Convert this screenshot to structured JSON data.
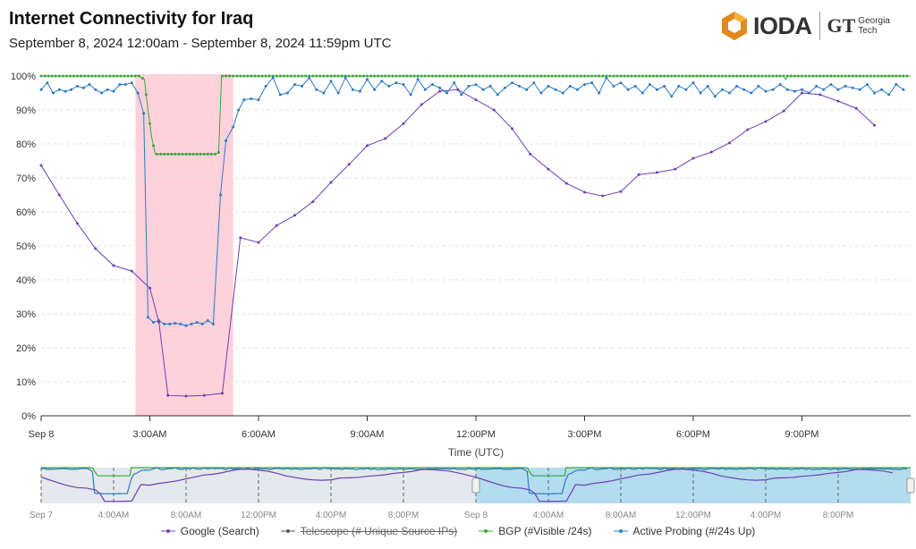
{
  "header": {
    "title": "Internet Connectivity for  Iraq",
    "subtitle": "September 8, 2024 12:00am - September 8, 2024 11:59pm UTC",
    "logo_text": "IODA",
    "partner_logo": "GT",
    "partner_name_1": "Georgia",
    "partner_name_2": "Tech"
  },
  "colors": {
    "google": "#6f3fb5",
    "telescope": "#555555",
    "bgp": "#3aa63a",
    "active": "#2b7bc4",
    "outage": "#ffd1da"
  },
  "chart_data": {
    "type": "line",
    "xlabel": "Time (UTC)",
    "ylabel": "",
    "ylim": [
      0,
      100
    ],
    "xlim_hours": [
      0,
      24
    ],
    "y_ticks": [
      "0%",
      "10%",
      "20%",
      "30%",
      "40%",
      "50%",
      "60%",
      "70%",
      "80%",
      "90%",
      "100%"
    ],
    "x_ticks": [
      {
        "h": 0,
        "label": "Sep 8"
      },
      {
        "h": 3,
        "label": "3:00AM"
      },
      {
        "h": 6,
        "label": "6:00AM"
      },
      {
        "h": 9,
        "label": "9:00AM"
      },
      {
        "h": 12,
        "label": "12:00PM"
      },
      {
        "h": 15,
        "label": "3:00PM"
      },
      {
        "h": 18,
        "label": "6:00PM"
      },
      {
        "h": 21,
        "label": "9:00PM"
      }
    ],
    "outage_hours": [
      2.6,
      5.3
    ],
    "series": [
      {
        "name": "Google (Search)",
        "key": "google",
        "struck": false,
        "points": [
          [
            0,
            73.7
          ],
          [
            0.5,
            65
          ],
          [
            1,
            56.6
          ],
          [
            1.5,
            49.2
          ],
          [
            2,
            44.2
          ],
          [
            2.5,
            42.6
          ],
          [
            3,
            37.6
          ],
          [
            3.25,
            27.6
          ],
          [
            3.5,
            6
          ],
          [
            4,
            5.8
          ],
          [
            4.5,
            6
          ],
          [
            5,
            6.6
          ],
          [
            5.5,
            52.4
          ],
          [
            6,
            51
          ],
          [
            6.5,
            56
          ],
          [
            7,
            59
          ],
          [
            7.5,
            63
          ],
          [
            8,
            68.7
          ],
          [
            8.5,
            74
          ],
          [
            9,
            79.5
          ],
          [
            9.5,
            81.6
          ],
          [
            10,
            86
          ],
          [
            10.5,
            91.6
          ],
          [
            11,
            95.5
          ],
          [
            11.5,
            96
          ],
          [
            12,
            93
          ],
          [
            12.5,
            90
          ],
          [
            13,
            84.5
          ],
          [
            13.5,
            77
          ],
          [
            14,
            72.6
          ],
          [
            14.5,
            68.4
          ],
          [
            15,
            65.8
          ],
          [
            15.5,
            64.7
          ],
          [
            16,
            66
          ],
          [
            16.5,
            71
          ],
          [
            17,
            71.6
          ],
          [
            17.5,
            72.6
          ],
          [
            18,
            75.8
          ],
          [
            18.5,
            77.6
          ],
          [
            19,
            80.3
          ],
          [
            19.5,
            84.2
          ],
          [
            20,
            86.6
          ],
          [
            20.5,
            89.7
          ],
          [
            21,
            95
          ],
          [
            21.5,
            94.5
          ],
          [
            22,
            92.6
          ],
          [
            22.5,
            90.5
          ],
          [
            23,
            85.5
          ]
        ]
      },
      {
        "name": "Telescope (# Unique Source IPs)",
        "key": "telescope",
        "struck": true,
        "points": []
      },
      {
        "name": "BGP (#Visible /24s)",
        "key": "bgp",
        "struck": false,
        "points": [
          [
            0,
            100
          ],
          [
            2.7,
            100
          ],
          [
            2.85,
            99
          ],
          [
            2.95,
            90
          ],
          [
            3.05,
            82
          ],
          [
            3.15,
            77
          ],
          [
            4.8,
            77
          ],
          [
            4.9,
            77.5
          ],
          [
            4.98,
            100
          ],
          [
            20.5,
            100
          ],
          [
            20.55,
            99
          ],
          [
            20.6,
            100
          ],
          [
            24,
            100
          ]
        ]
      },
      {
        "name": "Active Probing (#/24s Up)",
        "key": "active",
        "struck": false,
        "points": [
          [
            0,
            96
          ],
          [
            0.17,
            98
          ],
          [
            0.33,
            95
          ],
          [
            0.5,
            96
          ],
          [
            0.67,
            95.5
          ],
          [
            0.83,
            96
          ],
          [
            1,
            97
          ],
          [
            1.17,
            96.5
          ],
          [
            1.33,
            97.5
          ],
          [
            1.5,
            96
          ],
          [
            1.67,
            95
          ],
          [
            1.83,
            96
          ],
          [
            2,
            95.5
          ],
          [
            2.17,
            97.5
          ],
          [
            2.33,
            97.5
          ],
          [
            2.5,
            98
          ],
          [
            2.67,
            95
          ],
          [
            2.83,
            89
          ],
          [
            2.95,
            29
          ],
          [
            3.1,
            27.5
          ],
          [
            3.25,
            28
          ],
          [
            3.4,
            27
          ],
          [
            3.55,
            27
          ],
          [
            3.7,
            27.2
          ],
          [
            3.85,
            27
          ],
          [
            4,
            26.5
          ],
          [
            4.15,
            27
          ],
          [
            4.3,
            27.5
          ],
          [
            4.45,
            27
          ],
          [
            4.6,
            28
          ],
          [
            4.75,
            27
          ],
          [
            4.95,
            65
          ],
          [
            5.1,
            81
          ],
          [
            5.3,
            85
          ],
          [
            5.45,
            90
          ],
          [
            5.6,
            93
          ],
          [
            5.8,
            93.3
          ],
          [
            6,
            93
          ],
          [
            6.2,
            97
          ],
          [
            6.4,
            99.5
          ],
          [
            6.6,
            94.5
          ],
          [
            6.8,
            95
          ],
          [
            7,
            97.5
          ],
          [
            7.2,
            97
          ],
          [
            7.4,
            99.5
          ],
          [
            7.6,
            96
          ],
          [
            7.8,
            95
          ],
          [
            8,
            98.5
          ],
          [
            8.2,
            95
          ],
          [
            8.4,
            99.5
          ],
          [
            8.6,
            96
          ],
          [
            8.8,
            95.5
          ],
          [
            9,
            99
          ],
          [
            9.2,
            96
          ],
          [
            9.4,
            98.5
          ],
          [
            9.6,
            97
          ],
          [
            9.8,
            98
          ],
          [
            10,
            97.5
          ],
          [
            10.2,
            94.5
          ],
          [
            10.4,
            99
          ],
          [
            10.6,
            96
          ],
          [
            10.8,
            97.5
          ],
          [
            11,
            96.5
          ],
          [
            11.2,
            95
          ],
          [
            11.4,
            98
          ],
          [
            11.6,
            94.5
          ],
          [
            11.8,
            97
          ],
          [
            12,
            97.5
          ],
          [
            12.2,
            96
          ],
          [
            12.4,
            97
          ],
          [
            12.6,
            94.5
          ],
          [
            12.8,
            96.5
          ],
          [
            13,
            98
          ],
          [
            13.2,
            97
          ],
          [
            13.4,
            96
          ],
          [
            13.6,
            98
          ],
          [
            13.8,
            95
          ],
          [
            14,
            97
          ],
          [
            14.2,
            96
          ],
          [
            14.4,
            95
          ],
          [
            14.6,
            97
          ],
          [
            14.8,
            96
          ],
          [
            15,
            97.5
          ],
          [
            15.2,
            98
          ],
          [
            15.4,
            95
          ],
          [
            15.6,
            99.5
          ],
          [
            15.8,
            97
          ],
          [
            16,
            98
          ],
          [
            16.2,
            96
          ],
          [
            16.4,
            97
          ],
          [
            16.6,
            95
          ],
          [
            16.8,
            97.5
          ],
          [
            17,
            96
          ],
          [
            17.2,
            97
          ],
          [
            17.4,
            94
          ],
          [
            17.6,
            97
          ],
          [
            17.8,
            96
          ],
          [
            18,
            98
          ],
          [
            18.2,
            95
          ],
          [
            18.4,
            97
          ],
          [
            18.6,
            94
          ],
          [
            18.8,
            96
          ],
          [
            19,
            95
          ],
          [
            19.2,
            97
          ],
          [
            19.4,
            96
          ],
          [
            19.6,
            95
          ],
          [
            19.8,
            97
          ],
          [
            20,
            95.5
          ],
          [
            20.2,
            96
          ],
          [
            20.4,
            97.5
          ],
          [
            20.6,
            96
          ],
          [
            20.8,
            95.5
          ],
          [
            21,
            96
          ],
          [
            21.2,
            95
          ],
          [
            21.4,
            97
          ],
          [
            21.6,
            96
          ],
          [
            21.8,
            97.5
          ],
          [
            22,
            96
          ],
          [
            22.2,
            97
          ],
          [
            22.4,
            96.5
          ],
          [
            22.6,
            96
          ],
          [
            22.8,
            97.5
          ],
          [
            23,
            95
          ],
          [
            23.2,
            96
          ],
          [
            23.4,
            94.5
          ],
          [
            23.6,
            97.5
          ],
          [
            23.8,
            96
          ]
        ]
      }
    ]
  },
  "navigator": {
    "x_ticks": [
      "Sep 7",
      "4:00AM",
      "8:00AM",
      "12:00PM",
      "4:00PM",
      "8:00PM",
      "Sep 8",
      "4:00AM",
      "8:00AM",
      "12:00PM",
      "4:00PM",
      "8:00PM"
    ]
  }
}
